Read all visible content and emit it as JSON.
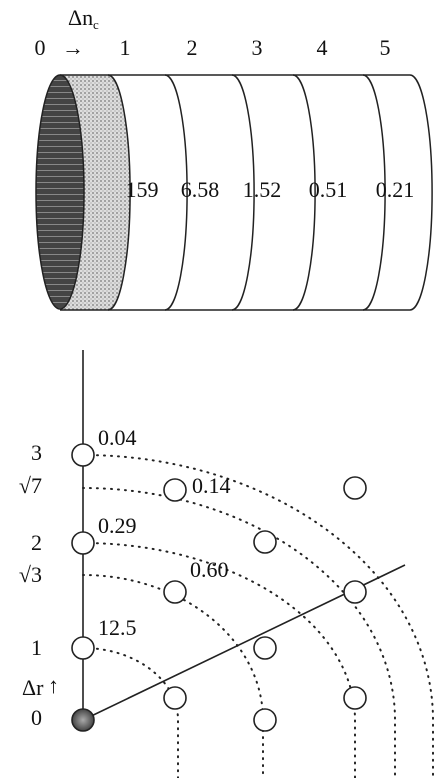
{
  "cylinder": {
    "axis_label": "Δn",
    "axis_label_sub": "c",
    "start": "0",
    "arrow": "→",
    "stations": [
      "1",
      "2",
      "3",
      "4",
      "5"
    ],
    "values": [
      "159",
      "6.58",
      "1.52",
      "0.51",
      "0.21"
    ]
  },
  "lattice": {
    "levels": [
      "3",
      "√7",
      "2",
      "√3",
      "1",
      "0"
    ],
    "axis_label": "Δr",
    "axis_arrow": "↑",
    "values": [
      "0.04",
      "0.14",
      "0.29",
      "0.60",
      "12.5"
    ]
  }
}
